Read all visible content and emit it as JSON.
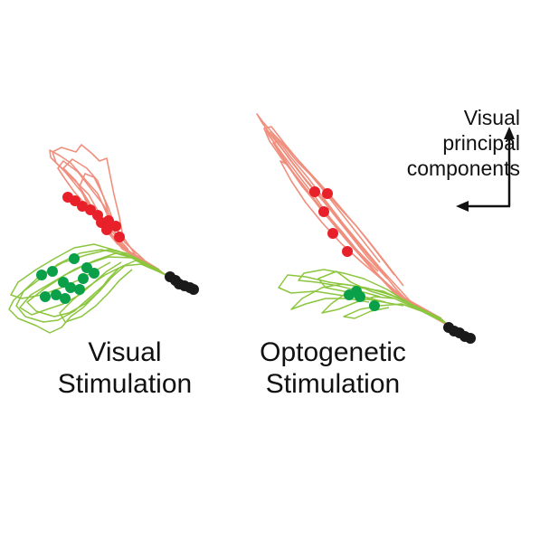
{
  "colors": {
    "red_trace": "#f08a78",
    "red_dot": "#e8202a",
    "green_trace": "#8cc63f",
    "green_dot": "#0aa04a",
    "black_dot": "#1a1a1a",
    "text": "#111111"
  },
  "panels": [
    {
      "name": "visual",
      "label_line1": "Visual",
      "label_line2": "Stimulation"
    },
    {
      "name": "optogenetic",
      "label_line1": "Optogenetic",
      "label_line2": "Stimulation"
    }
  ],
  "axis_legend": {
    "line1": "Visual",
    "line2": "principal",
    "line3": "components",
    "icon": "corner-arrows-icon"
  }
}
